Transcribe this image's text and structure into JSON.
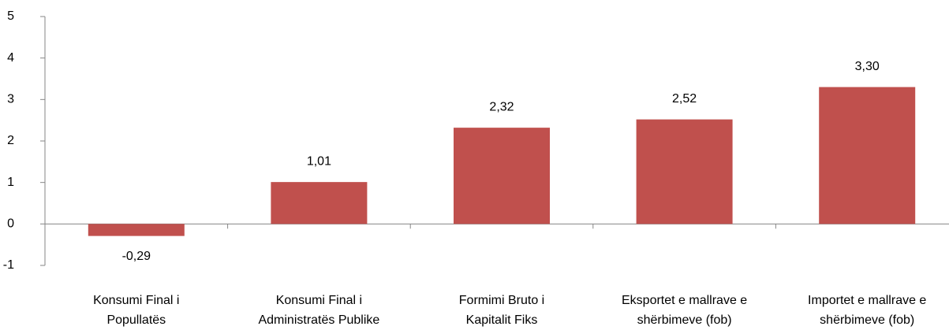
{
  "chart_data": {
    "type": "bar",
    "categories": [
      [
        "Konsumi Final i",
        "Popullatës"
      ],
      [
        "Konsumi Final i",
        "Administratës Publike"
      ],
      [
        "Formimi Bruto i",
        "Kapitalit Fiks"
      ],
      [
        "Eksportet e mallrave e",
        "shërbimeve (fob)"
      ],
      [
        "Importet e mallrave e",
        "shërbimeve (fob)"
      ]
    ],
    "values": [
      -0.29,
      1.01,
      2.32,
      2.52,
      3.3
    ],
    "value_labels": [
      "-0,29",
      "1,01",
      "2,32",
      "2,52",
      "3,30"
    ],
    "color": "#c0504d",
    "ylim": [
      -1,
      5
    ],
    "yticks": [
      -1,
      0,
      1,
      2,
      3,
      4,
      5
    ],
    "grid": false
  }
}
